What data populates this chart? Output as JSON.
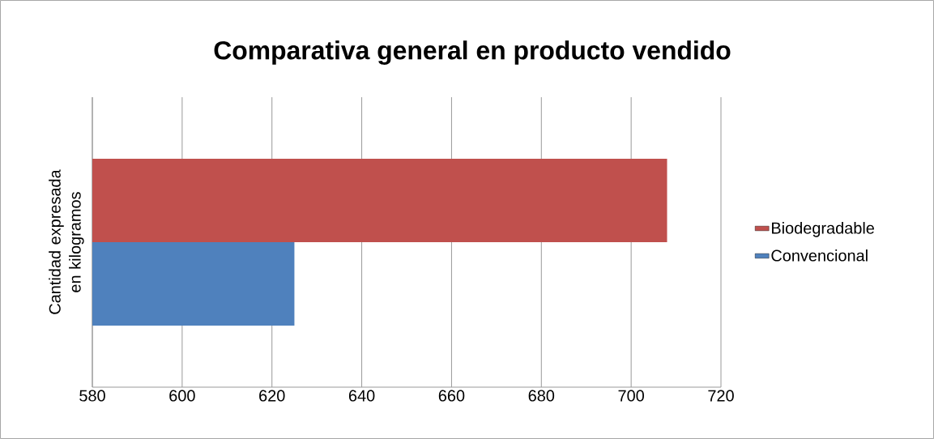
{
  "chart_data": {
    "type": "bar",
    "orientation": "horizontal",
    "title": "Comparativa general en producto vendido",
    "ylabel": "Cantidad expresada en kilogramos",
    "categories": [
      null
    ],
    "series": [
      {
        "name": "Convencional",
        "color": "#4f81bd",
        "values": [
          625
        ]
      },
      {
        "name": "Biodegradable",
        "color": "#c0504d",
        "values": [
          708
        ]
      }
    ],
    "xlim": [
      580,
      720
    ],
    "xticks": [
      580,
      600,
      620,
      640,
      660,
      680,
      700,
      720
    ],
    "grid": "x",
    "legend": "right",
    "tick_labels": "x"
  }
}
